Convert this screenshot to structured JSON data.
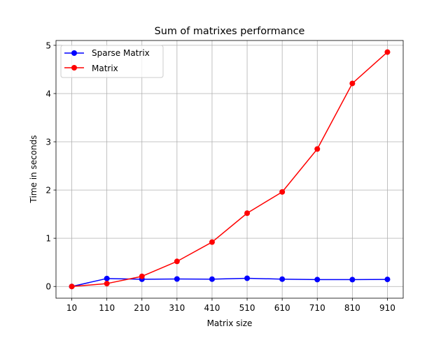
{
  "chart_data": {
    "type": "line",
    "title": "Sum of matrixes performance",
    "xlabel": "Matrix size",
    "ylabel": "Time in seconds",
    "x": [
      10,
      110,
      210,
      310,
      410,
      510,
      610,
      710,
      810,
      910
    ],
    "x_tick_labels": [
      "10",
      "110",
      "210",
      "310",
      "410",
      "510",
      "610",
      "710",
      "810",
      "910"
    ],
    "y_ticks": [
      0,
      1,
      2,
      3,
      4,
      5
    ],
    "y_tick_labels": [
      "0",
      "1",
      "2",
      "3",
      "4",
      "5"
    ],
    "xlim": [
      -35,
      955
    ],
    "ylim": [
      -0.243,
      5.1
    ],
    "grid": true,
    "legend_position": "top-left",
    "series": [
      {
        "name": "Sparse Matrix",
        "color": "#0000ff",
        "marker": "circle",
        "values": [
          0.0,
          0.165,
          0.15,
          0.155,
          0.152,
          0.17,
          0.152,
          0.143,
          0.142,
          0.147
        ]
      },
      {
        "name": "Matrix",
        "color": "#ff0000",
        "marker": "circle",
        "values": [
          0.0,
          0.06,
          0.21,
          0.52,
          0.92,
          1.52,
          1.96,
          2.85,
          4.21,
          4.86
        ]
      }
    ]
  }
}
